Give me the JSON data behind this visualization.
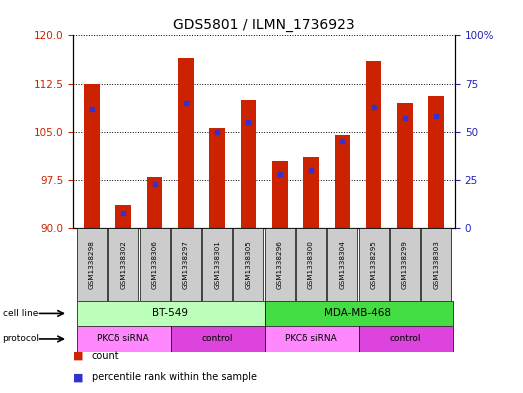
{
  "title": "GDS5801 / ILMN_1736923",
  "samples": [
    "GSM1338298",
    "GSM1338302",
    "GSM1338306",
    "GSM1338297",
    "GSM1338301",
    "GSM1338305",
    "GSM1338296",
    "GSM1338300",
    "GSM1338304",
    "GSM1338295",
    "GSM1338299",
    "GSM1338303"
  ],
  "count_values": [
    112.5,
    93.5,
    98.0,
    116.5,
    105.5,
    110.0,
    100.5,
    101.0,
    104.5,
    116.0,
    109.5,
    110.5
  ],
  "percentile_values": [
    62,
    8,
    23,
    65,
    50,
    55,
    28,
    30,
    45,
    63,
    57,
    58
  ],
  "ylim_left": [
    90,
    120
  ],
  "ylim_right": [
    0,
    100
  ],
  "yticks_left": [
    90,
    97.5,
    105,
    112.5,
    120
  ],
  "yticks_right": [
    0,
    25,
    50,
    75,
    100
  ],
  "bar_color": "#cc2200",
  "blue_color": "#3333cc",
  "cell_line_groups": [
    {
      "label": "BT-549",
      "start": 0,
      "end": 6,
      "color": "#bbffbb"
    },
    {
      "label": "MDA-MB-468",
      "start": 6,
      "end": 12,
      "color": "#44dd44"
    }
  ],
  "protocol_groups": [
    {
      "label": "PKCδ siRNA",
      "start": 0,
      "end": 3,
      "color": "#ff88ff"
    },
    {
      "label": "control",
      "start": 3,
      "end": 6,
      "color": "#dd44dd"
    },
    {
      "label": "PKCδ siRNA",
      "start": 6,
      "end": 9,
      "color": "#ff88ff"
    },
    {
      "label": "control",
      "start": 9,
      "end": 12,
      "color": "#dd44dd"
    }
  ],
  "legend_count_color": "#cc2200",
  "legend_percentile_color": "#3333cc",
  "left_label_color": "#cc2200",
  "right_label_color": "#2222bb",
  "bar_width": 0.5,
  "sample_box_color": "#cccccc"
}
